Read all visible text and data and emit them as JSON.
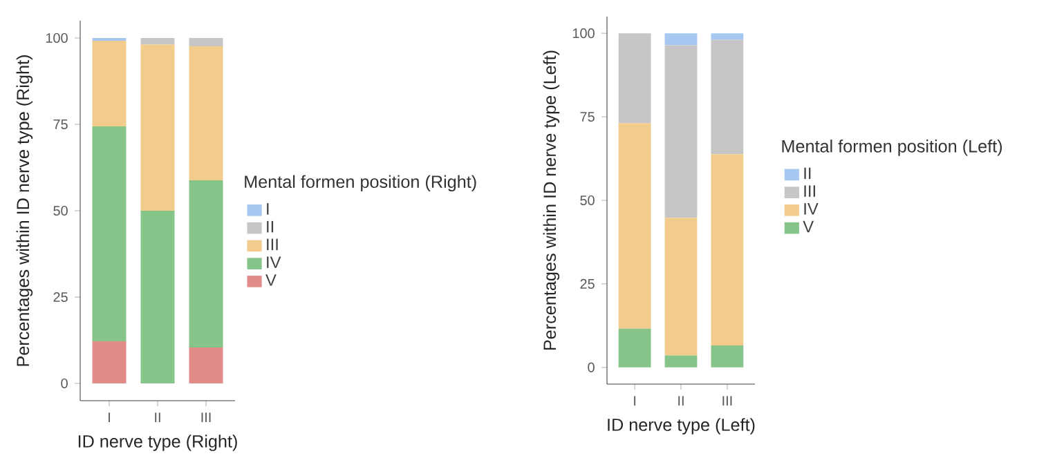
{
  "chart_data": [
    {
      "type": "bar",
      "stacked": true,
      "xlabel": "ID nerve type (Right)",
      "ylabel": "Percentages within ID nerve type (Right)",
      "legend_title": "Mental formen position (Right)",
      "legend": "right",
      "grid": false,
      "categories": [
        "I",
        "II",
        "III"
      ],
      "ylim": [
        -5,
        105
      ],
      "yticks": [
        0,
        25,
        50,
        75,
        100
      ],
      "series": [
        {
          "name": "V",
          "color": "#e28c8a",
          "values": [
            12.2,
            0,
            10.4
          ]
        },
        {
          "name": "IV",
          "color": "#87c48a",
          "values": [
            62.2,
            50,
            48.4
          ]
        },
        {
          "name": "III",
          "color": "#f2cc8c",
          "values": [
            24.8,
            48.1,
            38.8
          ]
        },
        {
          "name": "II",
          "color": "#c6c6c6",
          "values": [
            0,
            1.9,
            2.4
          ]
        },
        {
          "name": "I",
          "color": "#a6c8f0",
          "values": [
            0.8,
            0,
            0
          ]
        }
      ]
    },
    {
      "type": "bar",
      "stacked": true,
      "xlabel": "ID nerve type (Left)",
      "ylabel": "Percentages within ID nerve type (Left)",
      "legend_title": "Mental formen position (Left)",
      "legend": "right",
      "grid": false,
      "categories": [
        "I",
        "II",
        "III"
      ],
      "ylim": [
        -5,
        105
      ],
      "yticks": [
        0,
        25,
        50,
        75,
        100
      ],
      "series": [
        {
          "name": "V",
          "color": "#87c48a",
          "values": [
            11.6,
            3.6,
            6.6
          ]
        },
        {
          "name": "IV",
          "color": "#f2cc8c",
          "values": [
            61.5,
            41.2,
            57.2
          ]
        },
        {
          "name": "III",
          "color": "#c6c6c6",
          "values": [
            26.9,
            51.6,
            34.3
          ]
        },
        {
          "name": "II",
          "color": "#a6c8f0",
          "values": [
            0,
            3.6,
            1.9
          ]
        }
      ]
    }
  ]
}
